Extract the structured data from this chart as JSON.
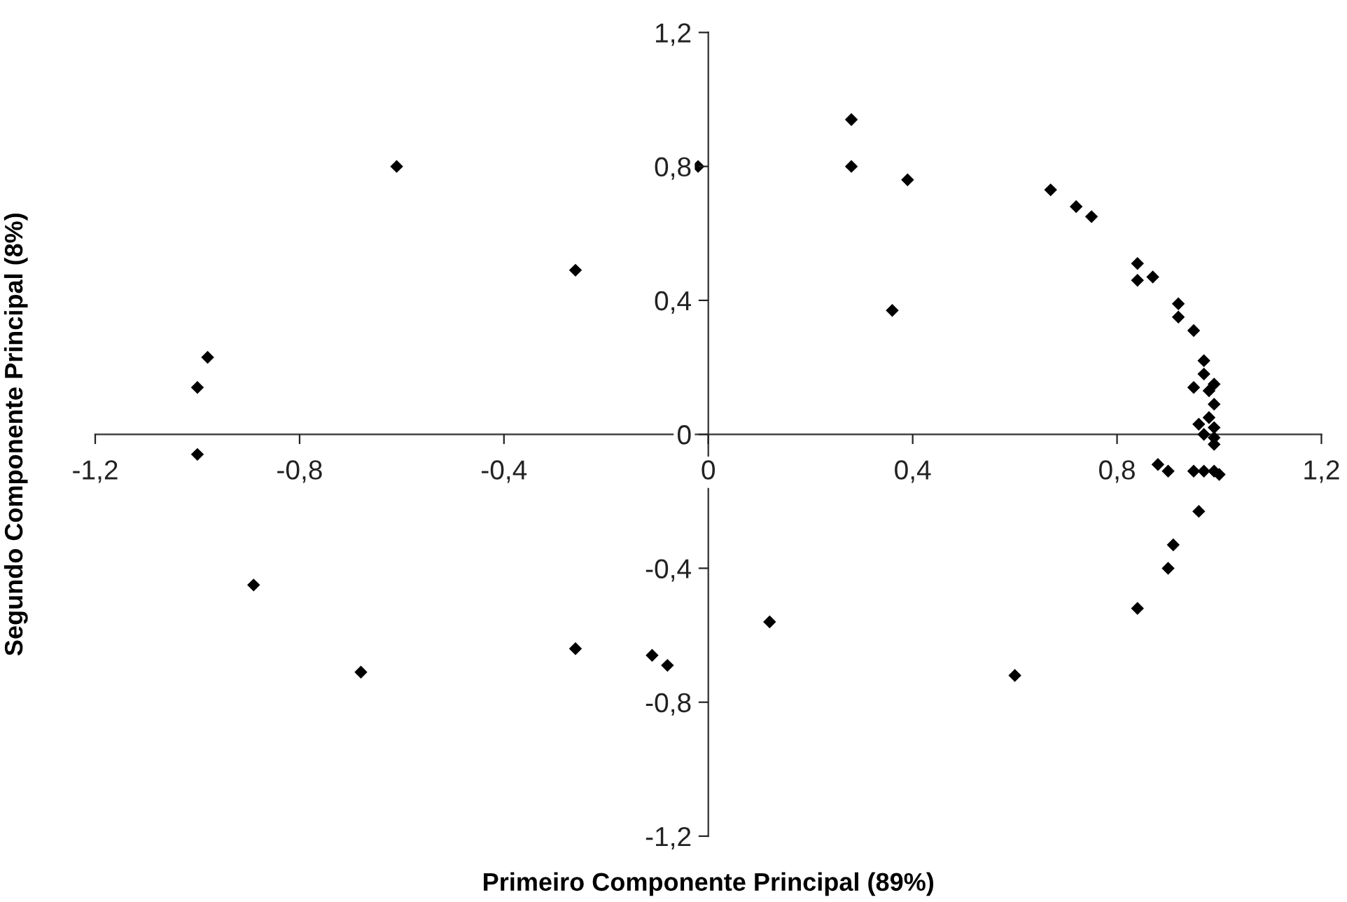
{
  "chart_data": {
    "type": "scatter",
    "xlabel": "Primeiro Componente Principal (89%)",
    "ylabel": "Segundo Componente Principal (8%)",
    "x": [
      -0.98,
      -1.0,
      -1.0,
      -0.89,
      -0.68,
      -0.61,
      -0.26,
      -0.26,
      -0.11,
      -0.08,
      -0.02,
      0.12,
      0.6,
      0.28,
      0.28,
      0.39,
      0.36,
      0.67,
      0.72,
      0.75,
      0.84,
      0.84,
      0.87,
      0.92,
      0.92,
      0.95,
      0.97,
      0.97,
      0.95,
      0.99,
      0.98,
      0.99,
      0.98,
      0.96,
      0.97,
      0.99,
      0.99,
      0.99,
      0.88,
      0.9,
      0.95,
      0.97,
      0.99,
      1.0,
      0.96,
      0.91,
      0.9,
      0.84
    ],
    "series": [
      {
        "color": "#000000",
        "values": [
          0.23,
          0.14,
          -0.06,
          -0.45,
          -0.71,
          0.8,
          0.49,
          -0.64,
          -0.66,
          -0.69,
          0.8,
          -0.56,
          -0.72,
          0.94,
          0.8,
          0.76,
          0.37,
          0.73,
          0.68,
          0.65,
          0.51,
          0.46,
          0.47,
          0.39,
          0.35,
          0.31,
          0.22,
          0.18,
          0.14,
          0.15,
          0.13,
          0.09,
          0.05,
          0.03,
          0.0,
          0.02,
          -0.01,
          -0.03,
          -0.09,
          -0.11,
          -0.11,
          -0.11,
          -0.11,
          -0.12,
          -0.23,
          -0.33,
          -0.4,
          -0.52
        ]
      }
    ],
    "marker": "diamond",
    "grid": false,
    "legend": false,
    "xlim": [
      -1.2,
      1.2
    ],
    "ylim": [
      -1.2,
      1.2
    ],
    "xticks": [
      {
        "value": -1.2,
        "label": "-1,2"
      },
      {
        "value": -0.8,
        "label": "-0,8"
      },
      {
        "value": -0.4,
        "label": "-0,4"
      },
      0,
      {
        "value": 0.4,
        "label": "0,4"
      },
      {
        "value": 0.8,
        "label": "0,8"
      },
      {
        "value": 1.2,
        "label": "1,2"
      }
    ],
    "yticks": [
      {
        "value": -1.2,
        "label": "-1,2"
      },
      {
        "value": -0.8,
        "label": "-0,8"
      },
      {
        "value": -0.4,
        "label": "-0,4"
      },
      0,
      {
        "value": 0.4,
        "label": "0,4"
      },
      {
        "value": 0.8,
        "label": "0,8"
      },
      {
        "value": 1.2,
        "label": "1,2"
      }
    ]
  }
}
